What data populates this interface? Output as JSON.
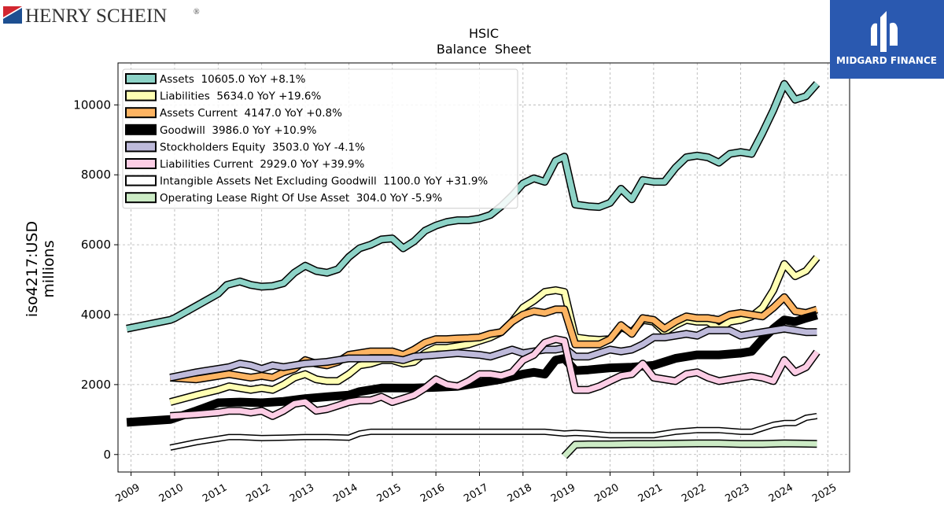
{
  "logos": {
    "left_text": "HENRY SCHEIN",
    "left_mark": "®",
    "right_text": "MIDGARD FINANCE"
  },
  "chart_data": {
    "type": "line",
    "title": "HSIC",
    "subtitle": "Balance  Sheet",
    "ylabel": "iso4217:USD",
    "ylabel2": "millions",
    "xlabel": "",
    "xlim": [
      2008.7,
      2025.5
    ],
    "ylim": [
      -500,
      11200
    ],
    "yticks": [
      0,
      2000,
      4000,
      6000,
      8000,
      10000
    ],
    "xticks": [
      2009,
      2010,
      2011,
      2012,
      2013,
      2014,
      2015,
      2016,
      2017,
      2018,
      2019,
      2020,
      2021,
      2022,
      2023,
      2024,
      2025
    ],
    "grid": true,
    "legend_position": "top-left",
    "series": [
      {
        "name": "Assets",
        "legend": "Assets  10605.0 YoY +8.1%",
        "color": "#8dd3c7",
        "width": 7,
        "x": [
          2008.9,
          2009.9,
          2010.0,
          2010.5,
          2011.0,
          2011.2,
          2011.5,
          2011.75,
          2012.0,
          2012.25,
          2012.5,
          2012.75,
          2013.0,
          2013.25,
          2013.5,
          2013.75,
          2014.0,
          2014.25,
          2014.5,
          2014.75,
          2015.0,
          2015.25,
          2015.5,
          2015.75,
          2016.0,
          2016.25,
          2016.5,
          2016.75,
          2017.0,
          2017.25,
          2017.5,
          2017.75,
          2018.0,
          2018.25,
          2018.5,
          2018.75,
          2018.95,
          2019.2,
          2019.5,
          2019.75,
          2020.0,
          2020.25,
          2020.5,
          2020.75,
          2021.0,
          2021.25,
          2021.5,
          2021.75,
          2022.0,
          2022.25,
          2022.5,
          2022.75,
          2023.0,
          2023.25,
          2023.5,
          2023.75,
          2024.0,
          2024.25,
          2024.5,
          2024.75
        ],
        "y": [
          3600,
          3850,
          3900,
          4250,
          4600,
          4850,
          4950,
          4850,
          4800,
          4820,
          4900,
          5200,
          5400,
          5250,
          5200,
          5300,
          5650,
          5900,
          6000,
          6150,
          6180,
          5900,
          6100,
          6400,
          6550,
          6650,
          6700,
          6700,
          6750,
          6850,
          7100,
          7400,
          7750,
          7900,
          7800,
          8400,
          8520,
          7150,
          7100,
          7080,
          7200,
          7600,
          7300,
          7850,
          7800,
          7800,
          8200,
          8500,
          8550,
          8500,
          8350,
          8600,
          8650,
          8600,
          9200,
          9850,
          10600,
          10150,
          10250,
          10605
        ]
      },
      {
        "name": "Liabilities",
        "legend": "Liabilities  5634.0 YoY +19.6%",
        "color": "#ffffb3",
        "width": 7,
        "x": [
          2009.9,
          2010.5,
          2011.0,
          2011.25,
          2011.5,
          2011.75,
          2012.0,
          2012.25,
          2012.5,
          2012.75,
          2013.0,
          2013.25,
          2013.5,
          2013.75,
          2014.0,
          2014.25,
          2014.5,
          2014.75,
          2015.0,
          2015.25,
          2015.5,
          2015.75,
          2016.0,
          2016.25,
          2016.5,
          2016.75,
          2017.0,
          2017.25,
          2017.5,
          2017.75,
          2018.0,
          2018.25,
          2018.5,
          2018.75,
          2018.95,
          2019.2,
          2019.5,
          2019.75,
          2020.0,
          2020.25,
          2020.5,
          2020.75,
          2021.0,
          2021.25,
          2021.5,
          2021.75,
          2022.0,
          2022.25,
          2022.5,
          2022.75,
          2023.0,
          2023.25,
          2023.5,
          2023.75,
          2024.0,
          2024.25,
          2024.5,
          2024.75
        ],
        "y": [
          1500,
          1700,
          1850,
          1950,
          1900,
          1850,
          1900,
          1850,
          2000,
          2200,
          2300,
          2150,
          2100,
          2100,
          2300,
          2550,
          2600,
          2700,
          2700,
          2600,
          2650,
          2900,
          3050,
          3050,
          3100,
          3150,
          3250,
          3350,
          3500,
          3800,
          4200,
          4400,
          4650,
          4700,
          4650,
          3350,
          3300,
          3280,
          3300,
          3650,
          3500,
          3850,
          3800,
          3500,
          3700,
          3850,
          3800,
          3800,
          3600,
          3800,
          3850,
          3950,
          4200,
          4700,
          5450,
          5100,
          5250,
          5634
        ]
      },
      {
        "name": "Assets Current",
        "legend": "Assets Current  4147.0 YoY +0.8%",
        "color": "#fdb462",
        "width": 7,
        "x": [
          2009.9,
          2010.5,
          2011.0,
          2011.25,
          2011.5,
          2011.75,
          2012.0,
          2012.25,
          2012.5,
          2012.75,
          2013.0,
          2013.25,
          2013.5,
          2013.75,
          2014.0,
          2014.25,
          2014.5,
          2014.75,
          2015.0,
          2015.25,
          2015.5,
          2015.75,
          2016.0,
          2016.25,
          2016.5,
          2016.75,
          2017.0,
          2017.25,
          2017.5,
          2017.75,
          2018.0,
          2018.25,
          2018.5,
          2018.75,
          2018.95,
          2019.2,
          2019.5,
          2019.75,
          2020.0,
          2020.25,
          2020.5,
          2020.75,
          2021.0,
          2021.25,
          2021.5,
          2021.75,
          2022.0,
          2022.25,
          2022.5,
          2022.75,
          2023.0,
          2023.25,
          2023.5,
          2023.75,
          2024.0,
          2024.25,
          2024.5,
          2024.75
        ],
        "y": [
          2200,
          2150,
          2250,
          2300,
          2250,
          2200,
          2250,
          2200,
          2350,
          2450,
          2700,
          2600,
          2550,
          2650,
          2850,
          2900,
          2950,
          2950,
          2950,
          2850,
          3000,
          3200,
          3300,
          3300,
          3320,
          3330,
          3350,
          3450,
          3500,
          3800,
          4000,
          4100,
          4050,
          4150,
          4150,
          3150,
          3150,
          3150,
          3300,
          3700,
          3450,
          3900,
          3850,
          3600,
          3800,
          3950,
          3900,
          3900,
          3850,
          4000,
          4050,
          4000,
          3950,
          4200,
          4500,
          4100,
          4050,
          4147
        ]
      },
      {
        "name": "Goodwill",
        "legend": "Goodwill  3986.0 YoY +10.9%",
        "color": "#000000",
        "width": 11,
        "x": [
          2008.9,
          2009.9,
          2010.5,
          2011.0,
          2011.5,
          2012.0,
          2012.5,
          2013.0,
          2013.5,
          2014.0,
          2014.25,
          2014.5,
          2014.75,
          2015.0,
          2015.5,
          2016.0,
          2016.5,
          2017.0,
          2017.5,
          2018.0,
          2018.25,
          2018.5,
          2018.75,
          2018.95,
          2019.2,
          2019.5,
          2020.0,
          2020.5,
          2021.0,
          2021.25,
          2021.5,
          2021.75,
          2022.0,
          2022.5,
          2023.0,
          2023.25,
          2023.5,
          2023.75,
          2024.0,
          2024.25,
          2024.5,
          2024.75
        ],
        "y": [
          920,
          1000,
          1250,
          1480,
          1500,
          1480,
          1520,
          1600,
          1650,
          1700,
          1800,
          1850,
          1900,
          1900,
          1900,
          1920,
          1950,
          2050,
          2150,
          2300,
          2350,
          2300,
          2700,
          2750,
          2400,
          2420,
          2480,
          2500,
          2550,
          2650,
          2750,
          2800,
          2850,
          2850,
          2900,
          2950,
          3300,
          3600,
          3850,
          3800,
          3900,
          3986
        ]
      },
      {
        "name": "Stockholders Equity",
        "legend": "Stockholders Equity  3503.0 YoY -4.1%",
        "color": "#bebada",
        "width": 7,
        "x": [
          2009.9,
          2010.5,
          2011.0,
          2011.25,
          2011.5,
          2011.75,
          2012.0,
          2012.25,
          2012.5,
          2012.75,
          2013.0,
          2013.5,
          2014.0,
          2014.5,
          2015.0,
          2015.25,
          2015.5,
          2016.0,
          2016.5,
          2017.0,
          2017.25,
          2017.5,
          2017.75,
          2018.0,
          2018.25,
          2018.5,
          2018.75,
          2018.95,
          2019.2,
          2019.5,
          2020.0,
          2020.25,
          2020.5,
          2020.75,
          2021.0,
          2021.25,
          2021.5,
          2021.75,
          2022.0,
          2022.25,
          2022.5,
          2022.75,
          2023.0,
          2023.25,
          2023.5,
          2023.75,
          2024.0,
          2024.25,
          2024.5,
          2024.75
        ],
        "y": [
          2200,
          2350,
          2450,
          2500,
          2600,
          2550,
          2450,
          2550,
          2500,
          2550,
          2600,
          2650,
          2750,
          2750,
          2750,
          2700,
          2800,
          2850,
          2900,
          2850,
          2800,
          2900,
          3000,
          2900,
          2950,
          3000,
          3000,
          3050,
          2800,
          2800,
          3000,
          2950,
          3000,
          3150,
          3350,
          3350,
          3400,
          3450,
          3400,
          3550,
          3550,
          3550,
          3400,
          3450,
          3500,
          3550,
          3600,
          3550,
          3500,
          3503
        ]
      },
      {
        "name": "Liabilities Current",
        "legend": "Liabilities Current  2929.0 YoY +39.9%",
        "color": "#fccde5",
        "width": 7,
        "x": [
          2009.9,
          2010.5,
          2011.0,
          2011.25,
          2011.5,
          2011.75,
          2012.0,
          2012.25,
          2012.5,
          2012.75,
          2013.0,
          2013.25,
          2013.5,
          2013.75,
          2014.0,
          2014.25,
          2014.5,
          2014.75,
          2015.0,
          2015.25,
          2015.5,
          2015.75,
          2016.0,
          2016.25,
          2016.5,
          2016.75,
          2017.0,
          2017.25,
          2017.5,
          2017.75,
          2018.0,
          2018.25,
          2018.5,
          2018.75,
          2018.95,
          2019.2,
          2019.5,
          2019.75,
          2020.0,
          2020.25,
          2020.5,
          2020.75,
          2021.0,
          2021.25,
          2021.5,
          2021.75,
          2022.0,
          2022.25,
          2022.5,
          2022.75,
          2023.0,
          2023.25,
          2023.5,
          2023.75,
          2024.0,
          2024.25,
          2024.5,
          2024.75
        ],
        "y": [
          1100,
          1150,
          1200,
          1250,
          1250,
          1200,
          1250,
          1100,
          1250,
          1450,
          1500,
          1250,
          1300,
          1400,
          1500,
          1550,
          1550,
          1650,
          1500,
          1600,
          1700,
          1900,
          2150,
          2000,
          1950,
          2100,
          2300,
          2300,
          2250,
          2350,
          2700,
          2850,
          3200,
          3300,
          3250,
          1850,
          1850,
          1950,
          2100,
          2250,
          2300,
          2600,
          2200,
          2150,
          2100,
          2300,
          2350,
          2200,
          2100,
          2150,
          2200,
          2250,
          2200,
          2100,
          2700,
          2350,
          2500,
          2929
        ]
      },
      {
        "name": "Intangible Assets Net Excluding Goodwill",
        "legend": "Intangible Assets Net Excluding Goodwill  1100.0 YoY +31.9%",
        "color": "#ffffff",
        "width": 5,
        "x": [
          2009.9,
          2010.5,
          2011.0,
          2011.25,
          2011.5,
          2012.0,
          2012.5,
          2013.0,
          2013.5,
          2014.0,
          2014.25,
          2014.5,
          2014.75,
          2015.0,
          2015.5,
          2016.0,
          2016.5,
          2017.0,
          2017.5,
          2018.0,
          2018.5,
          2018.95,
          2019.2,
          2019.5,
          2020.0,
          2020.5,
          2021.0,
          2021.25,
          2021.5,
          2022.0,
          2022.5,
          2023.0,
          2023.25,
          2023.5,
          2023.75,
          2024.0,
          2024.25,
          2024.5,
          2024.75
        ],
        "y": [
          200,
          350,
          450,
          500,
          500,
          470,
          480,
          500,
          500,
          480,
          600,
          650,
          650,
          650,
          650,
          650,
          650,
          650,
          650,
          650,
          650,
          600,
          620,
          600,
          550,
          550,
          550,
          600,
          650,
          700,
          700,
          650,
          650,
          750,
          850,
          900,
          900,
          1050,
          1100
        ]
      },
      {
        "name": "Operating Lease Right Of Use Asset",
        "legend": "Operating Lease Right Of Use Asset  304.0 YoY -5.9%",
        "color": "#ccebc5",
        "width": 7,
        "x": [
          2018.95,
          2019.2,
          2019.5,
          2020.0,
          2020.5,
          2021.0,
          2021.5,
          2022.0,
          2022.5,
          2023.0,
          2023.5,
          2024.0,
          2024.5,
          2024.75
        ],
        "y": [
          -50,
          280,
          290,
          290,
          300,
          300,
          310,
          320,
          320,
          300,
          300,
          320,
          310,
          304
        ]
      }
    ]
  }
}
